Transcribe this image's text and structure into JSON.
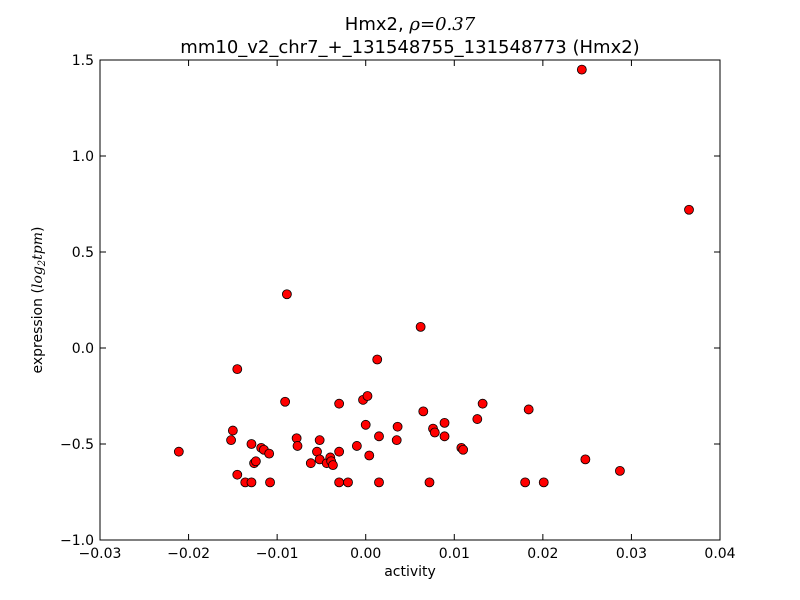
{
  "chart_data": {
    "type": "scatter",
    "title_prefix": "Hmx2, ",
    "title_rho_symbol": "ρ",
    "title_rho_value": "=0.37",
    "subtitle": "mm10_v2_chr7_+_131548755_131548773 (Hmx2)",
    "xlabel": "activity",
    "ylabel_prefix": "expression (",
    "ylabel_math": "log",
    "ylabel_sub": "2",
    "ylabel_math2": "tpm",
    "ylabel_suffix": ")",
    "xlim": [
      -0.03,
      0.04
    ],
    "ylim": [
      -1.0,
      1.5
    ],
    "xticks": [
      -0.03,
      -0.02,
      -0.01,
      0.0,
      0.01,
      0.02,
      0.03,
      0.04
    ],
    "xtick_labels": [
      "−0.03",
      "−0.02",
      "−0.01",
      "0.00",
      "0.01",
      "0.02",
      "0.03",
      "0.04"
    ],
    "yticks": [
      -1.0,
      -0.5,
      0.0,
      0.5,
      1.0,
      1.5
    ],
    "ytick_labels": [
      "−1.0",
      "−0.5",
      "0.0",
      "0.5",
      "1.0",
      "1.5"
    ],
    "marker_color": "#ff0000",
    "marker_edge": "#000000",
    "grid": false,
    "points": [
      {
        "x": -0.0211,
        "y": -0.54
      },
      {
        "x": -0.0152,
        "y": -0.48
      },
      {
        "x": -0.015,
        "y": -0.43
      },
      {
        "x": -0.0145,
        "y": -0.66
      },
      {
        "x": -0.0145,
        "y": -0.11
      },
      {
        "x": -0.0136,
        "y": -0.7
      },
      {
        "x": -0.0129,
        "y": -0.7
      },
      {
        "x": -0.0129,
        "y": -0.5
      },
      {
        "x": -0.0126,
        "y": -0.6
      },
      {
        "x": -0.0124,
        "y": -0.59
      },
      {
        "x": -0.0118,
        "y": -0.52
      },
      {
        "x": -0.0115,
        "y": -0.53
      },
      {
        "x": -0.0109,
        "y": -0.55
      },
      {
        "x": -0.0108,
        "y": -0.7
      },
      {
        "x": -0.0091,
        "y": -0.28
      },
      {
        "x": -0.0089,
        "y": 0.28
      },
      {
        "x": -0.0078,
        "y": -0.47
      },
      {
        "x": -0.0077,
        "y": -0.51
      },
      {
        "x": -0.0062,
        "y": -0.6
      },
      {
        "x": -0.0055,
        "y": -0.54
      },
      {
        "x": -0.0052,
        "y": -0.48
      },
      {
        "x": -0.0052,
        "y": -0.58
      },
      {
        "x": -0.0044,
        "y": -0.6
      },
      {
        "x": -0.004,
        "y": -0.57
      },
      {
        "x": -0.0039,
        "y": -0.59
      },
      {
        "x": -0.0037,
        "y": -0.61
      },
      {
        "x": -0.003,
        "y": -0.54
      },
      {
        "x": -0.003,
        "y": -0.29
      },
      {
        "x": -0.003,
        "y": -0.7
      },
      {
        "x": -0.002,
        "y": -0.7
      },
      {
        "x": -0.001,
        "y": -0.51
      },
      {
        "x": -0.0003,
        "y": -0.27
      },
      {
        "x": 0.0,
        "y": -0.4
      },
      {
        "x": 0.0002,
        "y": -0.25
      },
      {
        "x": 0.0004,
        "y": -0.56
      },
      {
        "x": 0.0013,
        "y": -0.06
      },
      {
        "x": 0.0015,
        "y": -0.46
      },
      {
        "x": 0.0015,
        "y": -0.7
      },
      {
        "x": 0.0035,
        "y": -0.48
      },
      {
        "x": 0.0036,
        "y": -0.41
      },
      {
        "x": 0.0062,
        "y": 0.11
      },
      {
        "x": 0.0065,
        "y": -0.33
      },
      {
        "x": 0.0072,
        "y": -0.7
      },
      {
        "x": 0.0076,
        "y": -0.42
      },
      {
        "x": 0.0078,
        "y": -0.44
      },
      {
        "x": 0.0089,
        "y": -0.39
      },
      {
        "x": 0.0089,
        "y": -0.46
      },
      {
        "x": 0.0108,
        "y": -0.52
      },
      {
        "x": 0.011,
        "y": -0.53
      },
      {
        "x": 0.0126,
        "y": -0.37
      },
      {
        "x": 0.0132,
        "y": -0.29
      },
      {
        "x": 0.018,
        "y": -0.7
      },
      {
        "x": 0.0184,
        "y": -0.32
      },
      {
        "x": 0.0201,
        "y": -0.7
      },
      {
        "x": 0.0244,
        "y": 1.45
      },
      {
        "x": 0.0248,
        "y": -0.58
      },
      {
        "x": 0.0287,
        "y": -0.64
      },
      {
        "x": 0.0365,
        "y": 0.72
      }
    ]
  }
}
